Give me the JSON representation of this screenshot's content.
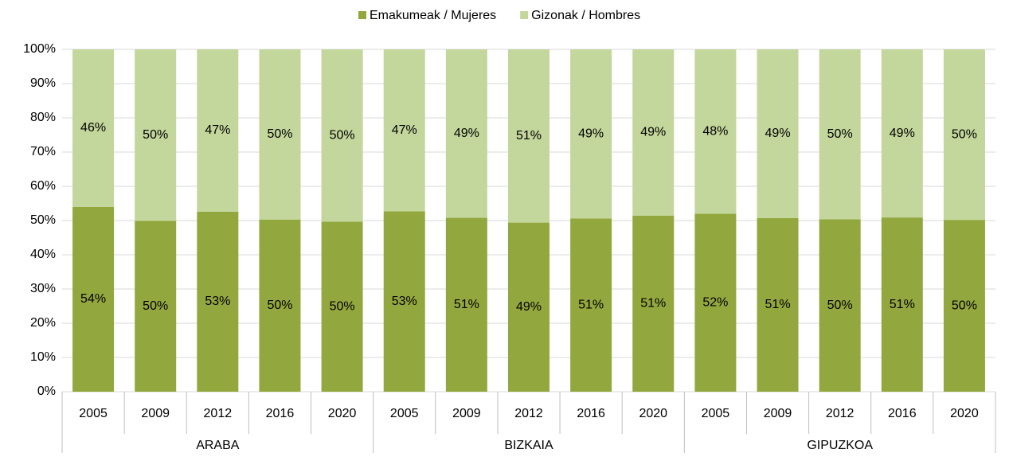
{
  "chart_data": {
    "type": "bar",
    "stacked": true,
    "categories": [
      "2005",
      "2009",
      "2012",
      "2016",
      "2020",
      "2005",
      "2009",
      "2012",
      "2016",
      "2020",
      "2005",
      "2009",
      "2012",
      "2016",
      "2020"
    ],
    "groups": [
      "ARABA",
      "BIZKAIA",
      "GIPUZKOA"
    ],
    "series": [
      {
        "name": "Emakumeak / Mujeres",
        "color": "#92a83f",
        "values": [
          54,
          49.9,
          52.6,
          50.3,
          49.7,
          52.7,
          50.8,
          49.4,
          50.6,
          51.4,
          52,
          50.7,
          50.4,
          50.9,
          50.2
        ],
        "value_labels": [
          "54%",
          "50%",
          "53%",
          "50%",
          "50%",
          "53%",
          "51%",
          "49%",
          "51%",
          "51%",
          "52%",
          "51%",
          "50%",
          "51%",
          "50%"
        ]
      },
      {
        "name": "Gizonak / Hombres",
        "color": "#c3d69b",
        "values": [
          46,
          50.1,
          47.4,
          49.7,
          50.3,
          47.3,
          49.2,
          50.6,
          49.4,
          48.6,
          48,
          49.3,
          49.6,
          49.1,
          49.8
        ],
        "value_labels": [
          "46%",
          "50%",
          "47%",
          "50%",
          "50%",
          "47%",
          "49%",
          "51%",
          "49%",
          "49%",
          "48%",
          "49%",
          "50%",
          "49%",
          "50%"
        ]
      }
    ],
    "ylim": [
      0,
      100
    ],
    "yticks": [
      {
        "value": 0,
        "label": "0%"
      },
      {
        "value": 10,
        "label": "10%"
      },
      {
        "value": 20,
        "label": "20%"
      },
      {
        "value": 30,
        "label": "30%"
      },
      {
        "value": 40,
        "label": "40%"
      },
      {
        "value": 50,
        "label": "50%"
      },
      {
        "value": 60,
        "label": "60%"
      },
      {
        "value": 70,
        "label": "70%"
      },
      {
        "value": 80,
        "label": "80%"
      },
      {
        "value": 90,
        "label": "90%"
      },
      {
        "value": 100,
        "label": "100%"
      }
    ],
    "grid": true,
    "legend": "top"
  }
}
